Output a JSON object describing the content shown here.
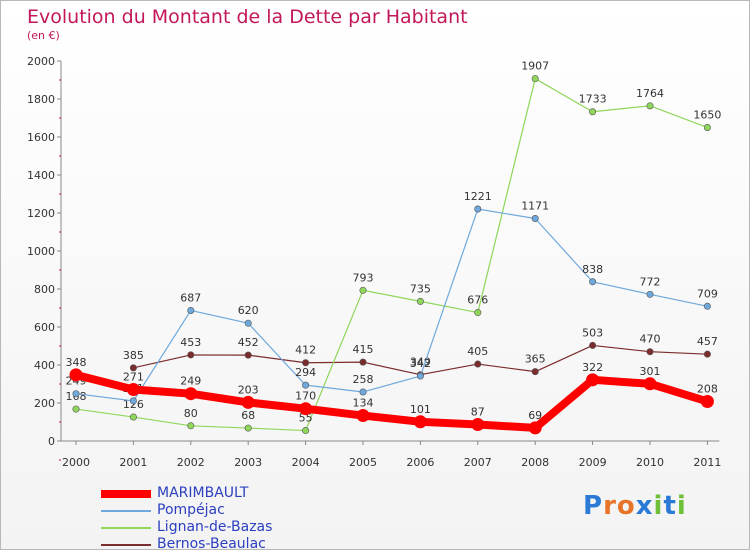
{
  "title": "Evolution du Montant de la Dette par Habitant",
  "subtitle": "(en €)",
  "logo": "Proxiti",
  "chart_data": {
    "type": "line",
    "title": "Evolution du Montant de la Dette par Habitant",
    "ylabel": "(en €)",
    "xlabel": "",
    "ylim": [
      0,
      2000
    ],
    "grid": false,
    "legend_position": "bottom-left",
    "x": [
      "2000",
      "2001",
      "2002",
      "2003",
      "2004",
      "2005",
      "2006",
      "2007",
      "2008",
      "2009",
      "2010",
      "2011"
    ],
    "yticks": [
      "0",
      "200",
      "400",
      "600",
      "800",
      "1000",
      "1200",
      "1400",
      "1600",
      "1800",
      "2000"
    ],
    "series": [
      {
        "name": "MARIMBAULT",
        "color": "#ff0000",
        "values": [
          348,
          271,
          249,
          203,
          170,
          134,
          101,
          87,
          69,
          322,
          301,
          208
        ],
        "labels": [
          "348",
          "271",
          "249",
          "203",
          "170",
          "134",
          "101",
          "87",
          "69",
          "322",
          "301",
          "208"
        ]
      },
      {
        "name": "Pompéjac",
        "color": "#6fa8dc",
        "values": [
          249,
          211,
          687,
          620,
          294,
          258,
          342,
          1221,
          1171,
          838,
          772,
          709
        ],
        "labels": [
          "249",
          "211",
          "687",
          "620",
          "294",
          "258",
          "342",
          "1221",
          "1171",
          "838",
          "772",
          "709"
        ]
      },
      {
        "name": "Lignan-de-Bazas",
        "color": "#8fd65a",
        "values": [
          168,
          126,
          80,
          68,
          55,
          793,
          735,
          676,
          1907,
          1733,
          1764,
          1650
        ],
        "labels": [
          "168",
          "126",
          "80",
          "68",
          "55",
          "793",
          "735",
          "676",
          "1907",
          "1733",
          "1764",
          "1650"
        ]
      },
      {
        "name": "Bernos-Beaulac",
        "color": "#7b2c2c",
        "values": [
          null,
          385,
          453,
          452,
          412,
          415,
          349,
          405,
          365,
          503,
          470,
          457
        ],
        "labels": [
          "",
          "385",
          "453",
          "452",
          "412",
          "415",
          "349",
          "405",
          "365",
          "503",
          "470",
          "457"
        ]
      }
    ]
  }
}
